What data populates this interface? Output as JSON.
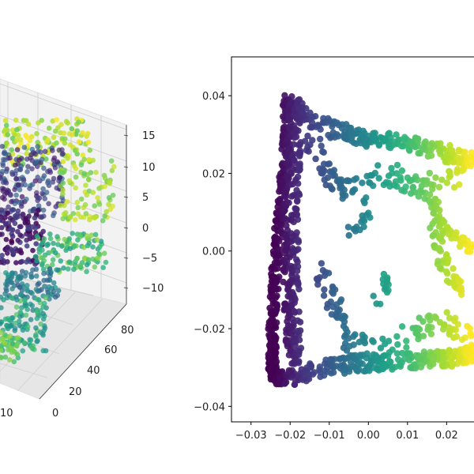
{
  "chart_data": [
    {
      "type": "scatter3d",
      "title": "",
      "description_axes": {
        "z_ticks": [
          "15",
          "10",
          "5",
          "0",
          "−5",
          "−10"
        ],
        "y_ticks": [
          "80",
          "60",
          "40",
          "20",
          "0"
        ],
        "x_ticks": [
          "10"
        ]
      },
      "zlim": [
        -12,
        16
      ],
      "ylim": [
        0,
        90
      ],
      "grid": true,
      "colormap": "viridis"
    },
    {
      "type": "scatter",
      "title": "",
      "xlabel": "",
      "ylabel": "",
      "xlim": [
        -0.035,
        0.027
      ],
      "ylim": [
        -0.044,
        0.05
      ],
      "x_ticks": [
        "−0.03",
        "−0.02",
        "−0.01",
        "0.00",
        "0.01",
        "0.02"
      ],
      "y_ticks": [
        "0.04",
        "0.02",
        "0.00",
        "−0.02",
        "−0.04"
      ],
      "x_tick_values": [
        -0.03,
        -0.02,
        -0.01,
        0.0,
        0.01,
        0.02
      ],
      "y_tick_values": [
        0.04,
        0.02,
        0.0,
        -0.02,
        -0.04
      ],
      "colormap": "viridis",
      "shape": {
        "left_edge": [
          [
            -0.0205,
            0.039
          ],
          [
            -0.0215,
            0.02
          ],
          [
            -0.0235,
            0.0
          ],
          [
            -0.0245,
            -0.02
          ],
          [
            -0.0245,
            -0.031
          ],
          [
            -0.022,
            -0.0335
          ]
        ],
        "top_edge": [
          [
            -0.0205,
            0.039
          ],
          [
            -0.017,
            0.035
          ],
          [
            -0.008,
            0.031
          ],
          [
            0.0,
            0.029
          ],
          [
            0.01,
            0.028
          ],
          [
            0.02,
            0.025
          ],
          [
            0.027,
            0.023
          ]
        ],
        "bottom_edge": [
          [
            -0.022,
            -0.0335
          ],
          [
            -0.015,
            -0.031
          ],
          [
            -0.005,
            -0.029
          ],
          [
            0.005,
            -0.0285
          ],
          [
            0.015,
            -0.028
          ],
          [
            0.022,
            -0.0275
          ],
          [
            0.027,
            -0.026
          ]
        ]
      }
    }
  ]
}
